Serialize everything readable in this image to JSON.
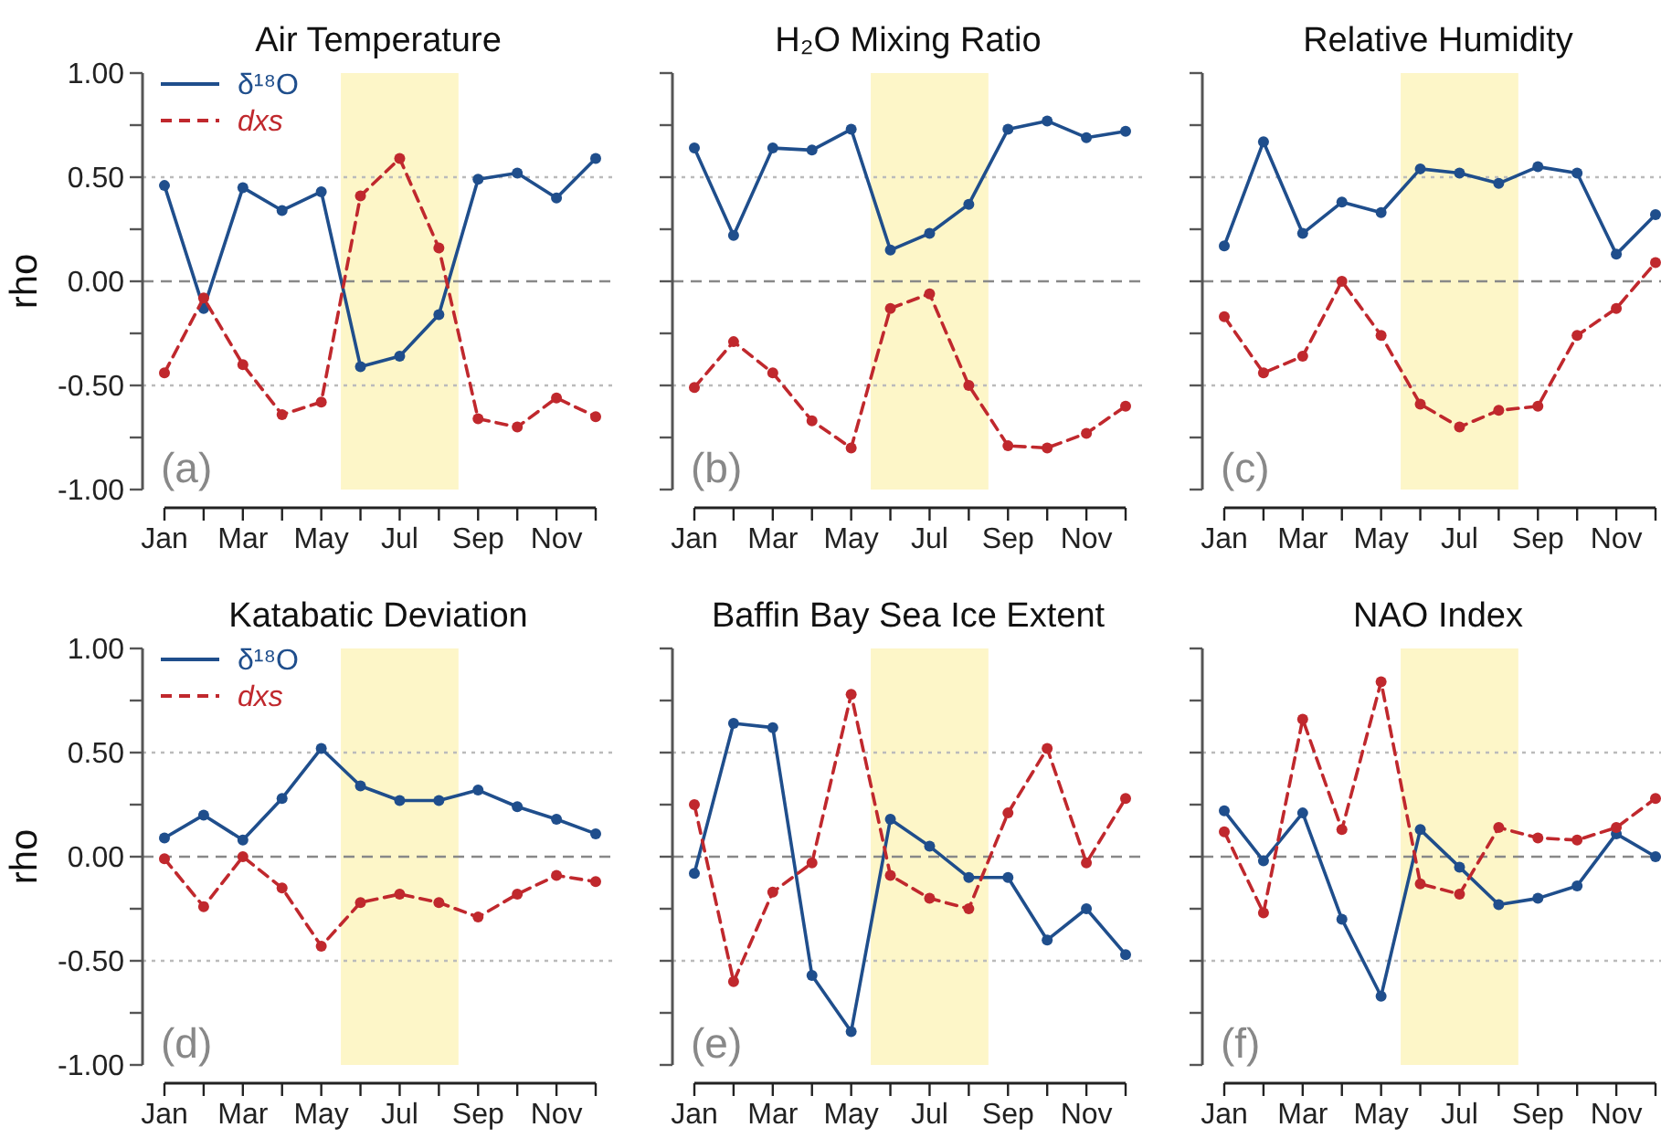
{
  "chart_data": [
    {
      "type": "line",
      "title": "Air Temperature",
      "ylabel": "rho",
      "annotations": [
        "(a)"
      ],
      "categories": [
        "Jan",
        null,
        "Mar",
        null,
        "May",
        null,
        "Jul",
        null,
        "Sep",
        null,
        "Nov",
        null
      ],
      "ylim": [
        -1,
        1
      ],
      "yticks": [
        {
          "value": -1,
          "label": "-1.00"
        },
        {
          "value": -0.75,
          "label": null
        },
        {
          "value": -0.5,
          "label": "-0.50"
        },
        {
          "value": -0.25,
          "label": null
        },
        {
          "value": 0,
          "label": "0.00"
        },
        {
          "value": 0.25,
          "label": null
        },
        {
          "value": 0.5,
          "label": "0.50"
        },
        {
          "value": 0.75,
          "label": null
        },
        {
          "value": 1,
          "label": "1.00"
        }
      ],
      "ref_lines": [
        {
          "axis": "y",
          "value": 0,
          "color": "#888888",
          "line_style": "dashed"
        },
        {
          "axis": "y",
          "value": 0.5,
          "color": "#bbbbbb",
          "line_style": "dotted"
        },
        {
          "axis": "y",
          "value": -0.5,
          "color": "#bbbbbb",
          "line_style": "dotted"
        }
      ],
      "legend": "top left",
      "marker": "circle",
      "series": [
        {
          "name": "δ¹⁸O",
          "color": "#1f4e8c",
          "line_style": "solid",
          "values": [
            0.46,
            -0.13,
            0.45,
            0.34,
            0.43,
            -0.41,
            -0.36,
            -0.16,
            0.49,
            0.52,
            0.4,
            0.59
          ]
        },
        {
          "name": "dxs",
          "color": "#c0282d",
          "line_style": "dashed",
          "values": [
            -0.44,
            -0.08,
            -0.4,
            -0.64,
            -0.58,
            0.41,
            0.59,
            0.16,
            -0.66,
            -0.7,
            -0.56,
            -0.65
          ]
        }
      ]
    },
    {
      "type": "line",
      "title": "H₂O Mixing Ratio",
      "annotations": [
        "(b)"
      ],
      "tick_labels": "x",
      "categories": [
        "Jan",
        null,
        "Mar",
        null,
        "May",
        null,
        "Jul",
        null,
        "Sep",
        null,
        "Nov",
        null
      ],
      "ylim": [
        -1,
        1
      ],
      "yticks": [
        {
          "value": -1,
          "label": null
        },
        {
          "value": -0.75,
          "label": null
        },
        {
          "value": -0.5,
          "label": null
        },
        {
          "value": -0.25,
          "label": null
        },
        {
          "value": 0,
          "label": null
        },
        {
          "value": 0.25,
          "label": null
        },
        {
          "value": 0.5,
          "label": null
        },
        {
          "value": 0.75,
          "label": null
        },
        {
          "value": 1,
          "label": null
        }
      ],
      "ref_lines": [
        {
          "axis": "y",
          "value": 0,
          "color": "#888888",
          "line_style": "dashed"
        },
        {
          "axis": "y",
          "value": 0.5,
          "color": "#bbbbbb",
          "line_style": "dotted"
        },
        {
          "axis": "y",
          "value": -0.5,
          "color": "#bbbbbb",
          "line_style": "dotted"
        }
      ],
      "marker": "circle",
      "series": [
        {
          "color": "#1f4e8c",
          "line_style": "solid",
          "values": [
            0.64,
            0.22,
            0.64,
            0.63,
            0.73,
            0.15,
            0.23,
            0.37,
            0.73,
            0.77,
            0.69,
            0.72
          ]
        },
        {
          "color": "#c0282d",
          "line_style": "dashed",
          "values": [
            -0.51,
            -0.29,
            -0.44,
            -0.67,
            -0.8,
            -0.13,
            -0.06,
            -0.5,
            -0.79,
            -0.8,
            -0.73,
            -0.6
          ]
        }
      ]
    },
    {
      "type": "line",
      "title": "Relative Humidity",
      "annotations": [
        "(c)"
      ],
      "tick_labels": "x",
      "categories": [
        "Jan",
        null,
        "Mar",
        null,
        "May",
        null,
        "Jul",
        null,
        "Sep",
        null,
        "Nov",
        null
      ],
      "ylim": [
        -1,
        1
      ],
      "yticks": [
        {
          "value": -1,
          "label": null
        },
        {
          "value": -0.75,
          "label": null
        },
        {
          "value": -0.5,
          "label": null
        },
        {
          "value": -0.25,
          "label": null
        },
        {
          "value": 0,
          "label": null
        },
        {
          "value": 0.25,
          "label": null
        },
        {
          "value": 0.5,
          "label": null
        },
        {
          "value": 0.75,
          "label": null
        },
        {
          "value": 1,
          "label": null
        }
      ],
      "ref_lines": [
        {
          "axis": "y",
          "value": 0,
          "color": "#888888",
          "line_style": "dashed"
        },
        {
          "axis": "y",
          "value": 0.5,
          "color": "#bbbbbb",
          "line_style": "dotted"
        },
        {
          "axis": "y",
          "value": -0.5,
          "color": "#bbbbbb",
          "line_style": "dotted"
        }
      ],
      "marker": "circle",
      "series": [
        {
          "color": "#1f4e8c",
          "line_style": "solid",
          "values": [
            0.17,
            0.67,
            0.23,
            0.38,
            0.33,
            0.54,
            0.52,
            0.47,
            0.55,
            0.52,
            0.13,
            0.32
          ]
        },
        {
          "color": "#c0282d",
          "line_style": "dashed",
          "values": [
            -0.17,
            -0.44,
            -0.36,
            0.0,
            -0.26,
            -0.59,
            -0.7,
            -0.62,
            -0.6,
            -0.26,
            -0.13,
            0.09
          ]
        }
      ]
    },
    {
      "type": "line",
      "title": "Katabatic Deviation",
      "ylabel": "rho",
      "annotations": [
        "(d)"
      ],
      "categories": [
        "Jan",
        null,
        "Mar",
        null,
        "May",
        null,
        "Jul",
        null,
        "Sep",
        null,
        "Nov",
        null
      ],
      "ylim": [
        -1,
        1
      ],
      "yticks": [
        {
          "value": -1,
          "label": "-1.00"
        },
        {
          "value": -0.75,
          "label": null
        },
        {
          "value": -0.5,
          "label": "-0.50"
        },
        {
          "value": -0.25,
          "label": null
        },
        {
          "value": 0,
          "label": "0.00"
        },
        {
          "value": 0.25,
          "label": null
        },
        {
          "value": 0.5,
          "label": "0.50"
        },
        {
          "value": 0.75,
          "label": null
        },
        {
          "value": 1,
          "label": "1.00"
        }
      ],
      "ref_lines": [
        {
          "axis": "y",
          "value": 0,
          "color": "#888888",
          "line_style": "dashed"
        },
        {
          "axis": "y",
          "value": 0.5,
          "color": "#bbbbbb",
          "line_style": "dotted"
        },
        {
          "axis": "y",
          "value": -0.5,
          "color": "#bbbbbb",
          "line_style": "dotted"
        }
      ],
      "legend": "top left",
      "marker": "circle",
      "series": [
        {
          "name": "δ¹⁸O",
          "color": "#1f4e8c",
          "line_style": "solid",
          "values": [
            0.09,
            0.2,
            0.08,
            0.28,
            0.52,
            0.34,
            0.27,
            0.27,
            0.32,
            0.24,
            0.18,
            0.11
          ]
        },
        {
          "name": "dxs",
          "color": "#c0282d",
          "line_style": "dashed",
          "values": [
            -0.01,
            -0.24,
            0.0,
            -0.15,
            -0.43,
            -0.22,
            -0.18,
            -0.22,
            -0.29,
            -0.18,
            -0.09,
            -0.12
          ]
        }
      ]
    },
    {
      "type": "line",
      "title": "Baffin Bay Sea Ice Extent",
      "annotations": [
        "(e)"
      ],
      "tick_labels": "x",
      "categories": [
        "Jan",
        null,
        "Mar",
        null,
        "May",
        null,
        "Jul",
        null,
        "Sep",
        null,
        "Nov",
        null
      ],
      "ylim": [
        -1,
        1
      ],
      "yticks": [
        {
          "value": -1,
          "label": null
        },
        {
          "value": -0.75,
          "label": null
        },
        {
          "value": -0.5,
          "label": null
        },
        {
          "value": -0.25,
          "label": null
        },
        {
          "value": 0,
          "label": null
        },
        {
          "value": 0.25,
          "label": null
        },
        {
          "value": 0.5,
          "label": null
        },
        {
          "value": 0.75,
          "label": null
        },
        {
          "value": 1,
          "label": null
        }
      ],
      "ref_lines": [
        {
          "axis": "y",
          "value": 0,
          "color": "#888888",
          "line_style": "dashed"
        },
        {
          "axis": "y",
          "value": 0.5,
          "color": "#bbbbbb",
          "line_style": "dotted"
        },
        {
          "axis": "y",
          "value": -0.5,
          "color": "#bbbbbb",
          "line_style": "dotted"
        }
      ],
      "marker": "circle",
      "series": [
        {
          "color": "#1f4e8c",
          "line_style": "solid",
          "values": [
            -0.08,
            0.64,
            0.62,
            -0.57,
            -0.84,
            0.18,
            0.05,
            -0.1,
            -0.1,
            -0.4,
            -0.25,
            -0.47
          ]
        },
        {
          "color": "#c0282d",
          "line_style": "dashed",
          "values": [
            0.25,
            -0.6,
            -0.17,
            -0.03,
            0.78,
            -0.09,
            -0.2,
            -0.25,
            0.21,
            0.52,
            -0.03,
            0.28
          ]
        }
      ]
    },
    {
      "type": "line",
      "title": "NAO Index",
      "annotations": [
        "(f)"
      ],
      "tick_labels": "x",
      "categories": [
        "Jan",
        null,
        "Mar",
        null,
        "May",
        null,
        "Jul",
        null,
        "Sep",
        null,
        "Nov",
        null
      ],
      "ylim": [
        -1,
        1
      ],
      "yticks": [
        {
          "value": -1,
          "label": null
        },
        {
          "value": -0.75,
          "label": null
        },
        {
          "value": -0.5,
          "label": null
        },
        {
          "value": -0.25,
          "label": null
        },
        {
          "value": 0,
          "label": null
        },
        {
          "value": 0.25,
          "label": null
        },
        {
          "value": 0.5,
          "label": null
        },
        {
          "value": 0.75,
          "label": null
        },
        {
          "value": 1,
          "label": null
        }
      ],
      "ref_lines": [
        {
          "axis": "y",
          "value": 0,
          "color": "#888888",
          "line_style": "dashed"
        },
        {
          "axis": "y",
          "value": 0.5,
          "color": "#bbbbbb",
          "line_style": "dotted"
        },
        {
          "axis": "y",
          "value": -0.5,
          "color": "#bbbbbb",
          "line_style": "dotted"
        }
      ],
      "marker": "circle",
      "series": [
        {
          "color": "#1f4e8c",
          "line_style": "solid",
          "values": [
            0.22,
            -0.02,
            0.21,
            -0.3,
            -0.67,
            0.13,
            -0.05,
            -0.23,
            -0.2,
            -0.14,
            0.11,
            0.0
          ]
        },
        {
          "color": "#c0282d",
          "line_style": "dashed",
          "values": [
            0.12,
            -0.27,
            0.66,
            0.13,
            0.84,
            -0.13,
            -0.18,
            0.14,
            0.09,
            0.08,
            0.14,
            0.28
          ]
        }
      ]
    }
  ]
}
